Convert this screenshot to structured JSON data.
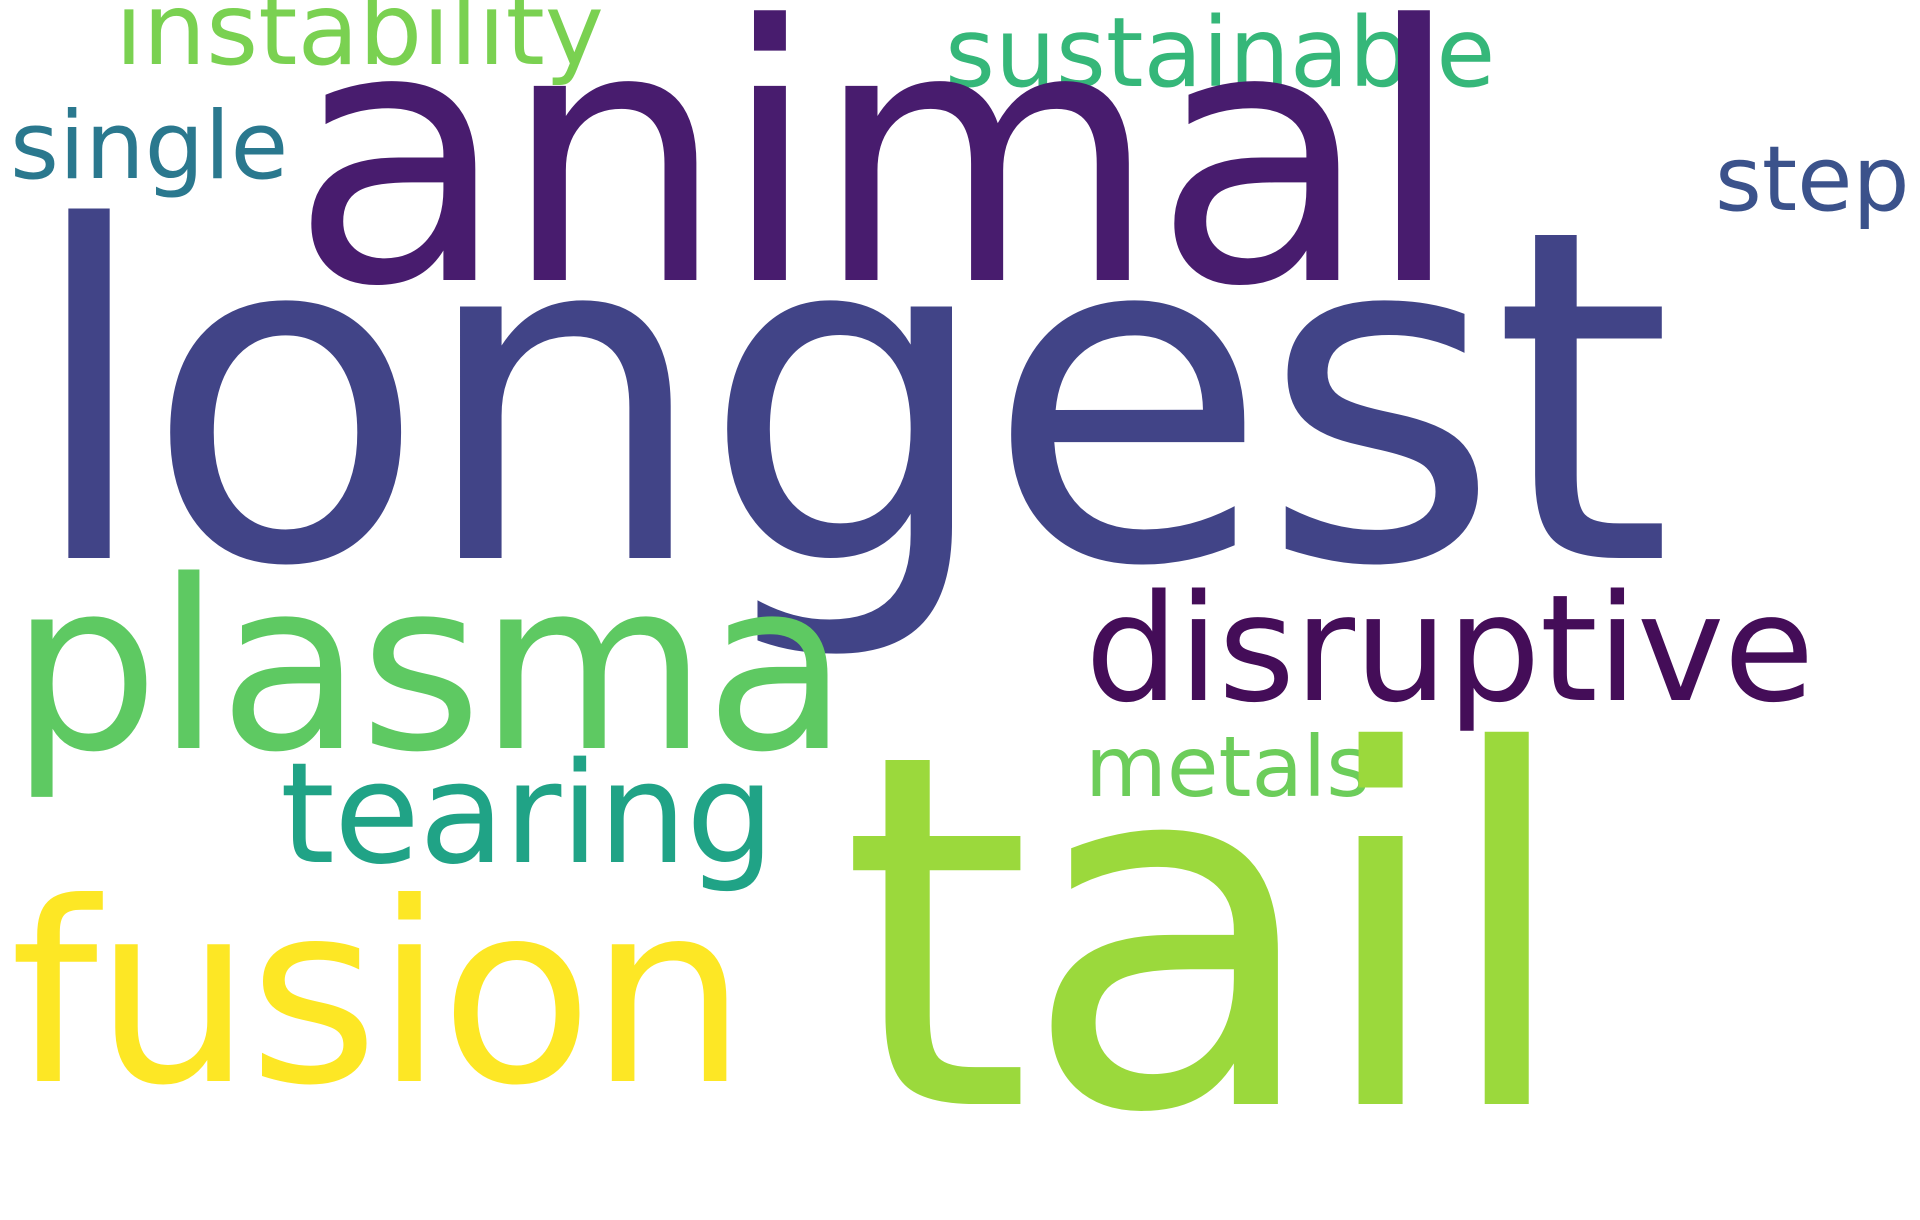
{
  "word_cloud": {
    "background_color": "#ffffff",
    "words": {
      "longest": {
        "text": "longest",
        "color": "#414487"
      },
      "animal": {
        "text": "animal",
        "color": "#481c6e"
      },
      "tail": {
        "text": "tail",
        "color": "#9bd93c"
      },
      "fusion": {
        "text": "fusion",
        "color": "#fde725"
      },
      "plasma": {
        "text": "plasma",
        "color": "#5ec962"
      },
      "disruptive": {
        "text": "disruptive",
        "color": "#440d58"
      },
      "tearing": {
        "text": "tearing",
        "color": "#20a386"
      },
      "sustainable": {
        "text": "sustainable",
        "color": "#35b779"
      },
      "instability": {
        "text": "instability",
        "color": "#7ad151"
      },
      "single": {
        "text": "single",
        "color": "#2a788e"
      },
      "metals": {
        "text": "metals",
        "color": "#6ccd5a"
      },
      "step": {
        "text": "step",
        "color": "#3b528b"
      }
    }
  }
}
